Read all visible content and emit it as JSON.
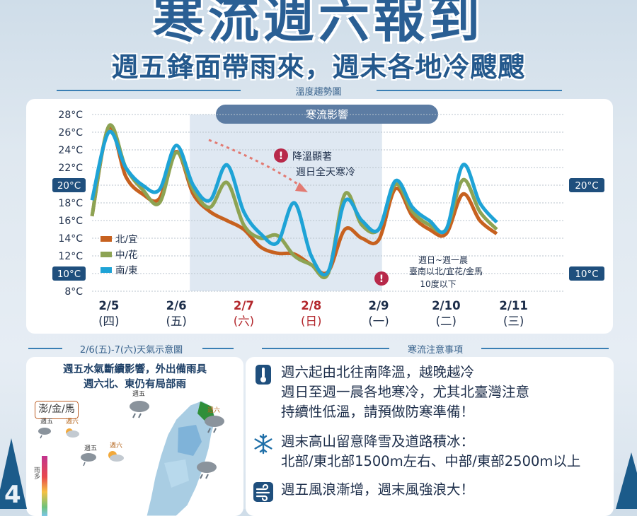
{
  "header": {
    "title": "寒流週六報到",
    "subtitle": "週五鋒面帶雨來，週末各地冷颼颼"
  },
  "chart_section": {
    "label": "溫度趨勢圖"
  },
  "chart_data": {
    "type": "line",
    "x_categories": [
      {
        "date": "2/5",
        "weekday": "(四)",
        "weekend": false
      },
      {
        "date": "2/6",
        "weekday": "(五)",
        "weekend": false
      },
      {
        "date": "2/7",
        "weekday": "(六)",
        "weekend": true
      },
      {
        "date": "2/8",
        "weekday": "(日)",
        "weekend": true
      },
      {
        "date": "2/9",
        "weekday": "(一)",
        "weekend": false
      },
      {
        "date": "2/10",
        "weekday": "(二)",
        "weekend": false
      },
      {
        "date": "2/11",
        "weekday": "(三)",
        "weekend": false
      }
    ],
    "y_ticks": [
      "28°C",
      "26°C",
      "24°C",
      "22°C",
      "20°C",
      "18°C",
      "16°C",
      "14°C",
      "12°C",
      "10°C",
      "8°C"
    ],
    "ylim": [
      8,
      28
    ],
    "x_day_range": [
      0,
      7
    ],
    "highlight_ticks": [
      "20°C",
      "10°C"
    ],
    "cold_band": {
      "label": "寒流影響",
      "x_start": 1.45,
      "x_end": 4.3
    },
    "annotations": [
      {
        "icon": "!",
        "lines": [
          "降溫顯著",
          "週日全天寒冷"
        ]
      },
      {
        "icon": "!",
        "lines": [
          "週日~週一晨",
          "臺南以北/宜花/金馬",
          "10度以下"
        ]
      }
    ],
    "series": [
      {
        "name": "北/宜",
        "color": "#c7611f",
        "points": [
          [
            0,
            16.5
          ],
          [
            0.25,
            26.5
          ],
          [
            0.5,
            21
          ],
          [
            0.75,
            19
          ],
          [
            1.0,
            18.5
          ],
          [
            1.25,
            23.8
          ],
          [
            1.5,
            19
          ],
          [
            1.75,
            17
          ],
          [
            2.0,
            16
          ],
          [
            2.25,
            15
          ],
          [
            2.5,
            13
          ],
          [
            2.75,
            12.3
          ],
          [
            3.0,
            12.2
          ],
          [
            3.25,
            11
          ],
          [
            3.5,
            10.2
          ],
          [
            3.75,
            15
          ],
          [
            4.0,
            14
          ],
          [
            4.25,
            13.8
          ],
          [
            4.5,
            19.6
          ],
          [
            4.75,
            16.5
          ],
          [
            5.0,
            15
          ],
          [
            5.25,
            14.5
          ],
          [
            5.5,
            19
          ],
          [
            5.75,
            16
          ],
          [
            6.0,
            14.5
          ]
        ]
      },
      {
        "name": "中/花",
        "color": "#8da353",
        "points": [
          [
            0,
            16.5
          ],
          [
            0.25,
            26.7
          ],
          [
            0.5,
            22
          ],
          [
            0.75,
            19.5
          ],
          [
            1.0,
            18
          ],
          [
            1.25,
            23.7
          ],
          [
            1.5,
            19.5
          ],
          [
            1.75,
            17.5
          ],
          [
            2.0,
            20.3
          ],
          [
            2.25,
            15.5
          ],
          [
            2.5,
            14
          ],
          [
            2.75,
            14.3
          ],
          [
            3.0,
            12
          ],
          [
            3.25,
            11
          ],
          [
            3.5,
            10
          ],
          [
            3.75,
            19
          ],
          [
            4.0,
            15.5
          ],
          [
            4.25,
            15
          ],
          [
            4.5,
            20.1
          ],
          [
            4.75,
            17
          ],
          [
            5.0,
            15.5
          ],
          [
            5.25,
            15
          ],
          [
            5.5,
            20.6
          ],
          [
            5.75,
            17
          ],
          [
            6.0,
            15
          ]
        ]
      },
      {
        "name": "南/東",
        "color": "#1ea3d6",
        "points": [
          [
            0,
            18.3
          ],
          [
            0.25,
            26
          ],
          [
            0.5,
            22
          ],
          [
            0.75,
            20
          ],
          [
            1.0,
            19.5
          ],
          [
            1.25,
            24.5
          ],
          [
            1.5,
            20
          ],
          [
            1.75,
            18.3
          ],
          [
            2.0,
            22.3
          ],
          [
            2.25,
            17
          ],
          [
            2.5,
            14.5
          ],
          [
            2.75,
            13.5
          ],
          [
            3.0,
            18
          ],
          [
            3.25,
            12
          ],
          [
            3.5,
            10.2
          ],
          [
            3.75,
            18.2
          ],
          [
            4.0,
            16
          ],
          [
            4.25,
            15
          ],
          [
            4.5,
            20.5
          ],
          [
            4.75,
            17.5
          ],
          [
            5.0,
            16
          ],
          [
            5.25,
            15
          ],
          [
            5.5,
            22.3
          ],
          [
            5.75,
            18
          ],
          [
            6.0,
            15.8
          ]
        ]
      }
    ]
  },
  "map_section": {
    "label": "2/6(五)-7(六)天氣示意圖",
    "caption_lines": [
      "週五水氣斷續影響，外出備雨具",
      "週六北、東仍有局部雨"
    ],
    "region_tag": "澎/金/馬",
    "day_labels": [
      "週五",
      "週六",
      "週五",
      "週六",
      "週五",
      "週六"
    ],
    "rain_scale_label": "雨多",
    "left_badge": "4"
  },
  "notes_section": {
    "label": "寒流注意事項",
    "items": [
      {
        "icon": "thermometer-icon",
        "lines": [
          "週六起由北往南降溫，越晚越冷",
          "週日至週一晨各地寒冷，尤其北臺灣注意",
          "持續性低溫，請預做防寒準備！"
        ]
      },
      {
        "icon": "snowflake-icon",
        "lines": [
          "週末高山留意降雪及道路積冰：",
          "北部/東北部1500m左右、中部/東部2500m以上"
        ]
      },
      {
        "icon": "wind-icon",
        "lines": [
          "週五風浪漸增，週末風強浪大！"
        ]
      }
    ]
  },
  "colors": {
    "title": "#2a5f94",
    "cold_band": "#5c7ca3",
    "weekend": "#b3282d",
    "badge": "#1f4f7d"
  }
}
